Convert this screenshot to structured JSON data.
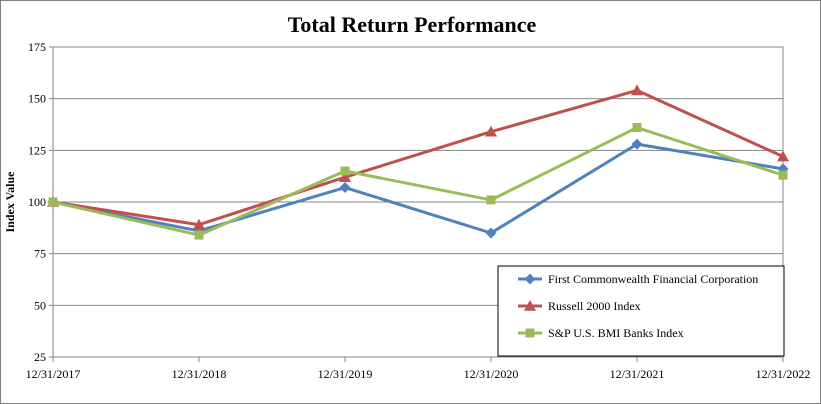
{
  "chart_data": {
    "type": "line",
    "title": "Total Return Performance",
    "ylabel": "Index Value",
    "xlabel": "",
    "x": [
      "12/31/2017",
      "12/31/2018",
      "12/31/2019",
      "12/31/2020",
      "12/31/2021",
      "12/31/2022"
    ],
    "ylim": [
      25,
      175
    ],
    "yticks": [
      25,
      50,
      75,
      100,
      125,
      150,
      175
    ],
    "grid": true,
    "legend_position": "bottom-right",
    "series": [
      {
        "name": "First Commonwealth Financial Corporation",
        "values": [
          100,
          86,
          107,
          85,
          128,
          116
        ],
        "color": "#4f81bd",
        "marker": "diamond"
      },
      {
        "name": "Russell 2000 Index",
        "values": [
          100,
          89,
          112,
          134,
          154,
          122
        ],
        "color": "#c0504d",
        "marker": "triangle"
      },
      {
        "name": "S&P U.S. BMI Banks Index",
        "values": [
          100,
          84,
          115,
          101,
          136,
          113
        ],
        "color": "#9bbb59",
        "marker": "square"
      }
    ]
  }
}
